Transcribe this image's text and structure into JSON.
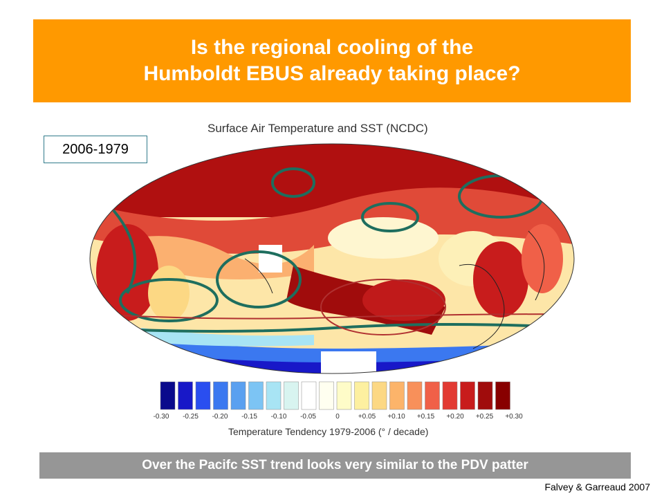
{
  "title": {
    "line1": "Is the regional cooling of the",
    "line2": "Humboldt EBUS already taking place?"
  },
  "map": {
    "title": "Surface Air Temperature and SST (NCDC)",
    "period_label": "2006-1979"
  },
  "colorbar": {
    "title": "Temperature Tendency 1979-2006 (° / decade)",
    "tick_labels": [
      "-0.30",
      "-0.25",
      "-0.20",
      "-0.15",
      "-0.10",
      "-0.05",
      "0",
      "+0.05",
      "+0.10",
      "+0.15",
      "+0.20",
      "+0.25",
      "+0.30"
    ],
    "colors": [
      "#0a0a8c",
      "#1818c8",
      "#2a4ef0",
      "#3b78f0",
      "#5aa0f0",
      "#7cc4f4",
      "#a8e4f4",
      "#d8f4f0",
      "#ffffff",
      "#fffff0",
      "#fefcc8",
      "#fdf0a0",
      "#fcd884",
      "#fcb46a",
      "#f8905a",
      "#f06048",
      "#e23a32",
      "#c81c1c",
      "#a00c0c",
      "#880000"
    ]
  },
  "footer": {
    "text": "Over the Pacifc SST trend looks very similar to the PDV patter"
  },
  "credit": "Falvey & Garreaud  2007"
}
